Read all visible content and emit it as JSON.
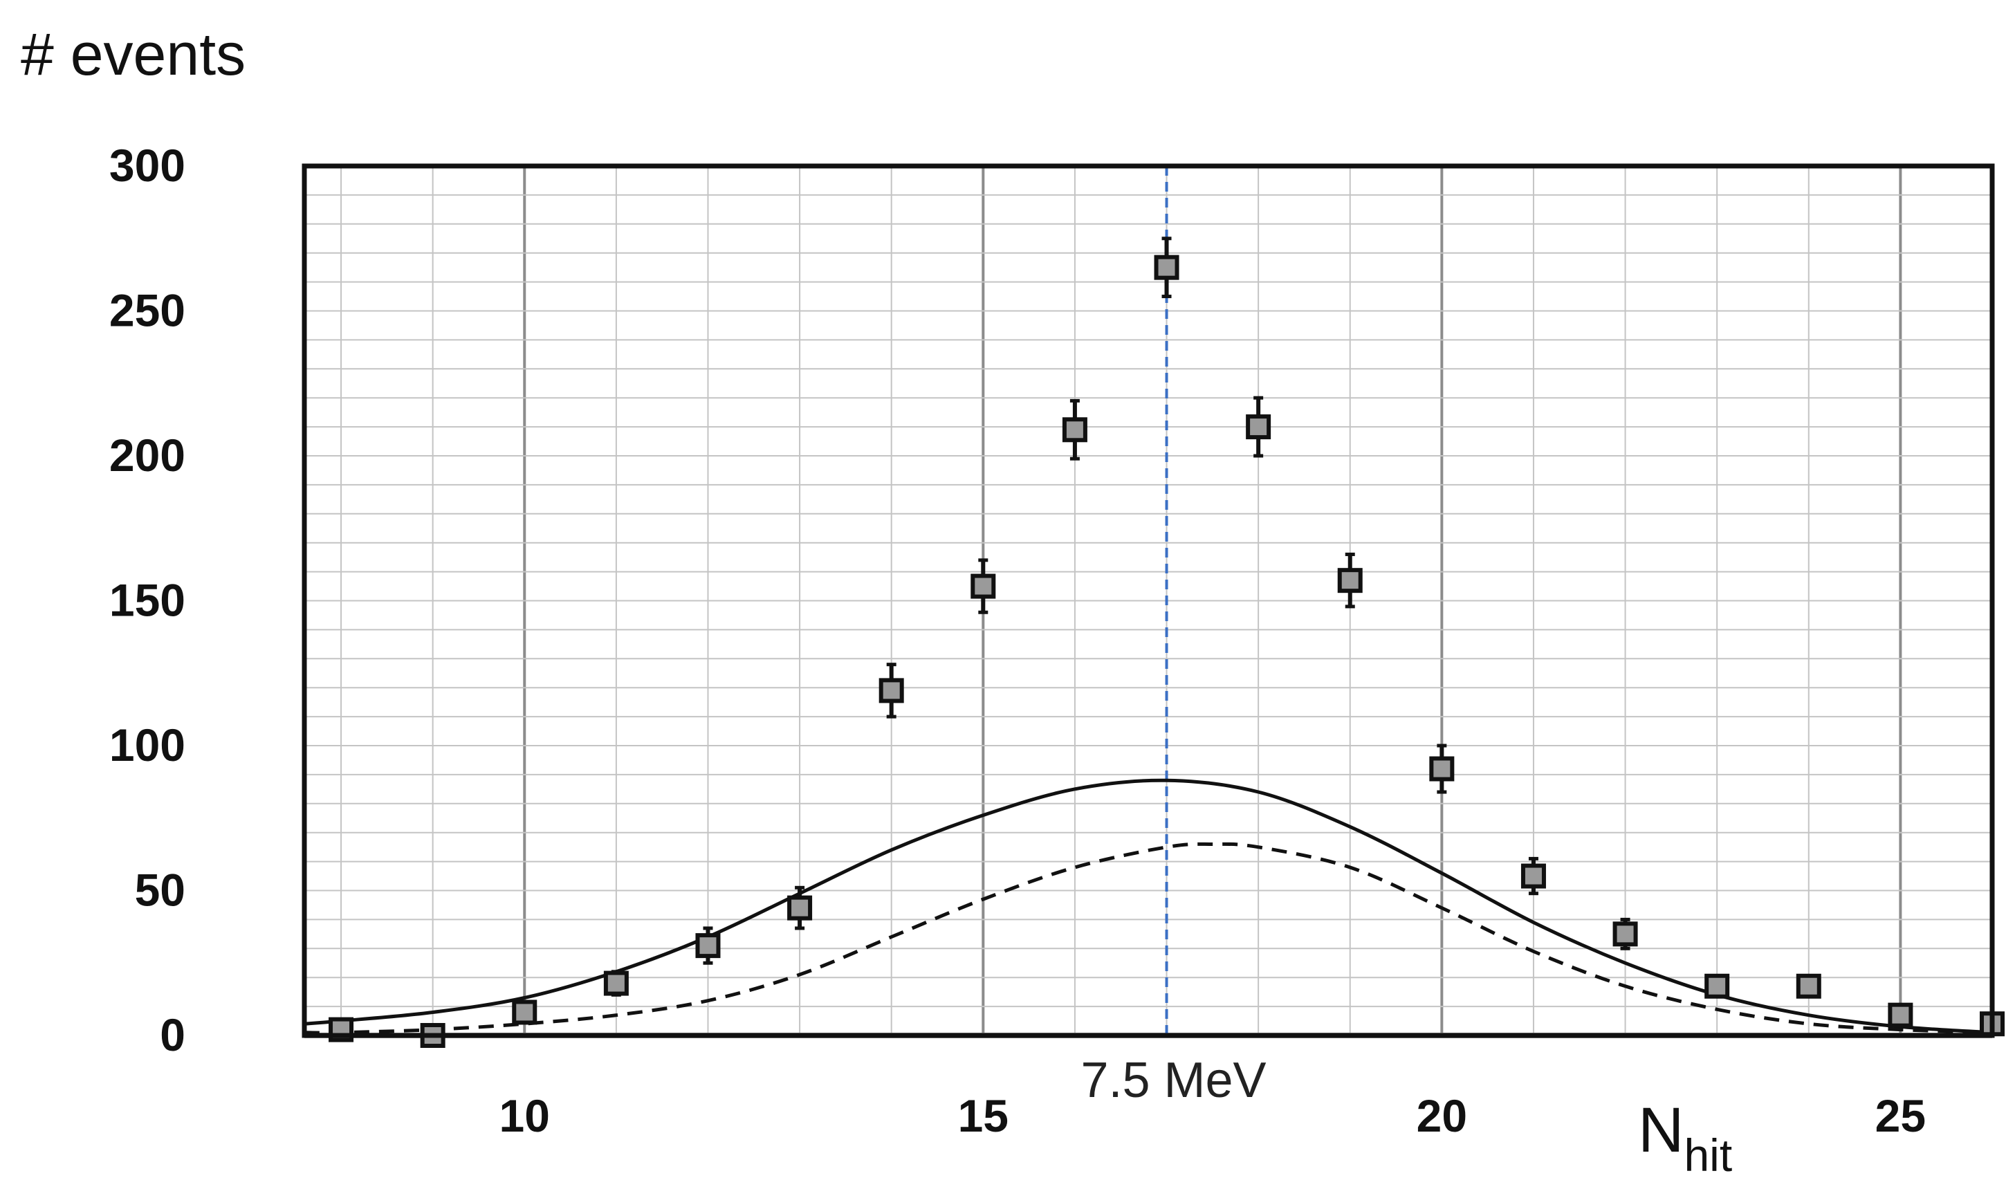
{
  "chart_data": {
    "type": "scatter",
    "title": "",
    "ylabel": "# events",
    "xlabel": {
      "main": "N",
      "subscript": "hit"
    },
    "xlim": [
      7.6,
      26
    ],
    "ylim": [
      0,
      300
    ],
    "xticks": [
      10,
      15,
      20,
      25
    ],
    "yticks": [
      0,
      50,
      100,
      150,
      200,
      250,
      300
    ],
    "grid": {
      "major_x_step": 5,
      "minor_x_step": 1,
      "minor_y_step": 10
    },
    "series": [
      {
        "kind": "points_with_error_bars",
        "marker": "square",
        "marker_color": "#9a9a9a",
        "points": [
          {
            "x": 8,
            "y": 2,
            "err": 2
          },
          {
            "x": 9,
            "y": 0,
            "err": 1
          },
          {
            "x": 10,
            "y": 8,
            "err": 3
          },
          {
            "x": 11,
            "y": 18,
            "err": 4
          },
          {
            "x": 12,
            "y": 31,
            "err": 6
          },
          {
            "x": 13,
            "y": 44,
            "err": 7
          },
          {
            "x": 14,
            "y": 119,
            "err": 9
          },
          {
            "x": 15,
            "y": 155,
            "err": 9
          },
          {
            "x": 16,
            "y": 209,
            "err": 10
          },
          {
            "x": 17,
            "y": 265,
            "err": 10
          },
          {
            "x": 18,
            "y": 210,
            "err": 10
          },
          {
            "x": 19,
            "y": 157,
            "err": 9
          },
          {
            "x": 20,
            "y": 92,
            "err": 8
          },
          {
            "x": 21,
            "y": 55,
            "err": 6
          },
          {
            "x": 22,
            "y": 35,
            "err": 5
          },
          {
            "x": 23,
            "y": 17,
            "err": 3
          },
          {
            "x": 24,
            "y": 17,
            "err": 3
          },
          {
            "x": 25,
            "y": 7,
            "err": 2
          },
          {
            "x": 26,
            "y": 4,
            "err": 2
          }
        ]
      },
      {
        "kind": "curve",
        "line_style": "solid",
        "color": "#111111",
        "curve_points": [
          [
            7.6,
            4
          ],
          [
            8,
            5
          ],
          [
            9,
            8
          ],
          [
            10,
            13
          ],
          [
            11,
            22
          ],
          [
            12,
            34
          ],
          [
            13,
            49
          ],
          [
            14,
            64
          ],
          [
            15,
            76
          ],
          [
            16,
            85
          ],
          [
            17,
            88
          ],
          [
            18,
            84
          ],
          [
            19,
            72
          ],
          [
            20,
            56
          ],
          [
            21,
            39
          ],
          [
            22,
            25
          ],
          [
            23,
            14
          ],
          [
            24,
            7
          ],
          [
            25,
            3
          ],
          [
            26,
            1
          ]
        ]
      },
      {
        "kind": "curve",
        "line_style": "dashed",
        "color": "#111111",
        "curve_points": [
          [
            7.6,
            1
          ],
          [
            8,
            1
          ],
          [
            9,
            2
          ],
          [
            10,
            4
          ],
          [
            11,
            7
          ],
          [
            12,
            12
          ],
          [
            13,
            21
          ],
          [
            14,
            34
          ],
          [
            15,
            47
          ],
          [
            16,
            58
          ],
          [
            17,
            65
          ],
          [
            17.5,
            66
          ],
          [
            18,
            65
          ],
          [
            19,
            58
          ],
          [
            20,
            44
          ],
          [
            21,
            29
          ],
          [
            22,
            17
          ],
          [
            23,
            9
          ],
          [
            24,
            4
          ],
          [
            25,
            2
          ],
          [
            26,
            1
          ]
        ]
      }
    ],
    "reference_line": {
      "x": 17,
      "style": "dashed",
      "color": "#3b6fc4",
      "label": "7.5 MeV"
    },
    "legend": "none"
  }
}
